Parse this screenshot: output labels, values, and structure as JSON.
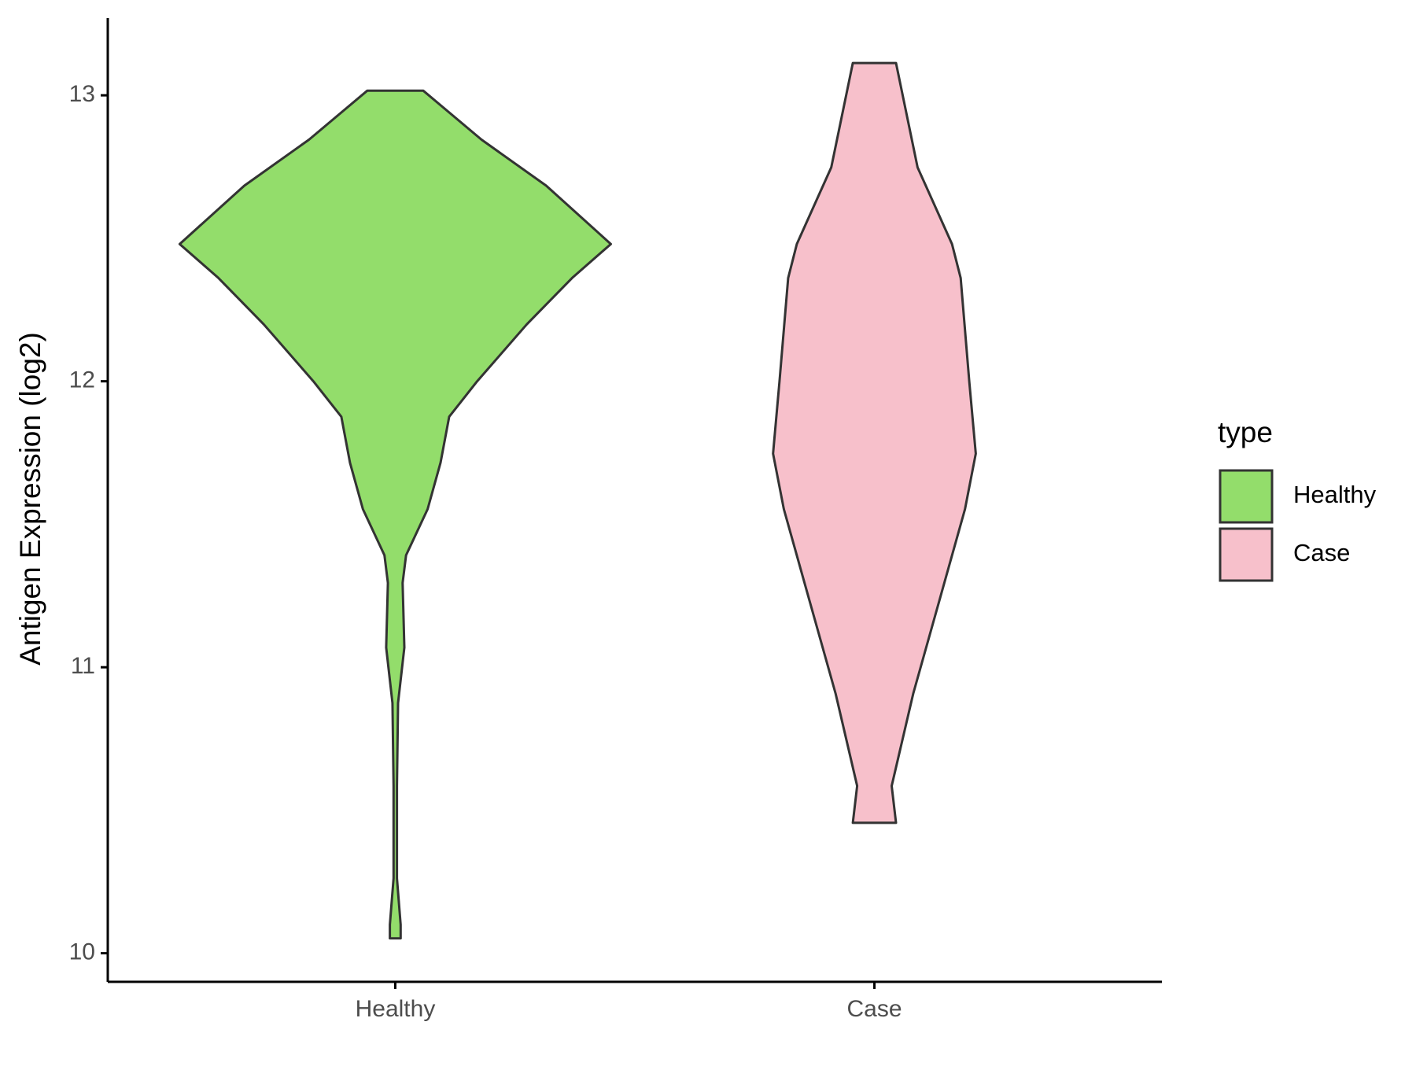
{
  "chart_data": {
    "type": "violin",
    "y_label": "Antigen Expression (log2)",
    "categories": [
      "Healthy",
      "Case"
    ],
    "ylim": [
      9.9,
      13.27
    ],
    "yticks": [
      10,
      11,
      12,
      13
    ],
    "legend_title": "type",
    "legend_position": "right",
    "series": [
      {
        "name": "Healthy",
        "color": "#93dd6b",
        "y": [
          13.016,
          12.845,
          12.684,
          12.48,
          12.361,
          12.199,
          12.0,
          11.876,
          11.715,
          11.553,
          11.392,
          11.295,
          11.069,
          10.875,
          10.585,
          10.262,
          10.1,
          10.052
        ],
        "density": [
          0.13,
          0.4,
          0.7,
          1.0,
          0.82,
          0.61,
          0.38,
          0.25,
          0.21,
          0.15,
          0.05,
          0.034,
          0.042,
          0.013,
          0.008,
          0.008,
          0.025,
          0.025
        ]
      },
      {
        "name": "Case",
        "color": "#f7c0cb",
        "y": [
          13.113,
          12.748,
          12.48,
          12.361,
          12.0,
          11.747,
          11.553,
          11.23,
          10.908,
          10.585,
          10.456
        ],
        "density": [
          0.1,
          0.2,
          0.36,
          0.4,
          0.44,
          0.47,
          0.42,
          0.3,
          0.18,
          0.08,
          0.1
        ]
      }
    ]
  }
}
